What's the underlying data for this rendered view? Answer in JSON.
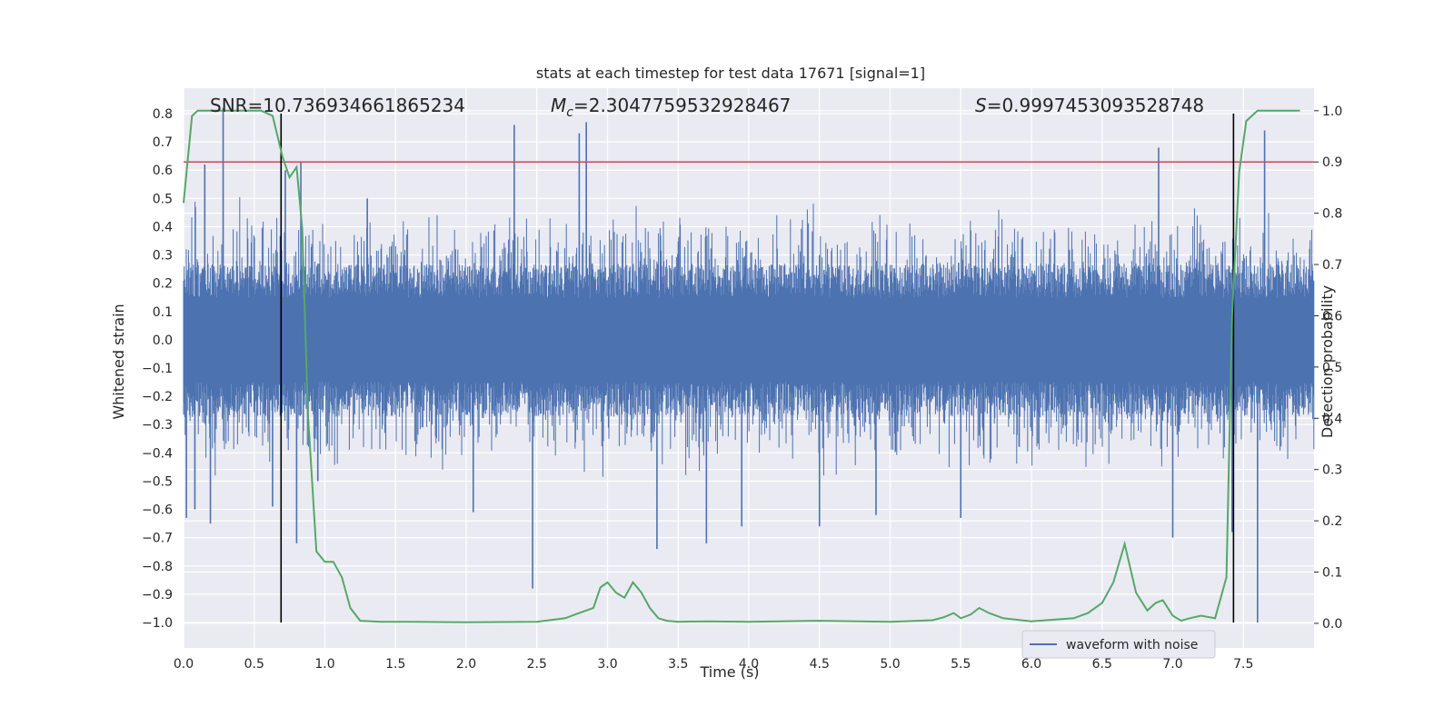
{
  "chart_data": {
    "type": "line",
    "title": "stats at each timestep for test data 17671 [signal=1]",
    "xlabel": "Time (s)",
    "ylabel": "Whitened strain",
    "y2label": "Detection probability",
    "xlim": [
      0,
      8.0
    ],
    "ylim": [
      -1.09,
      0.89
    ],
    "y2lim": [
      -0.048,
      1.044
    ],
    "xticks": [
      "0.0",
      "0.5",
      "1.0",
      "1.5",
      "2.0",
      "2.5",
      "3.0",
      "3.5",
      "4.0",
      "4.5",
      "5.0",
      "5.5",
      "6.0",
      "6.5",
      "7.0",
      "7.5"
    ],
    "yticks": [
      "0.8",
      "0.7",
      "0.6",
      "0.5",
      "0.4",
      "0.3",
      "0.2",
      "0.1",
      "0.0",
      "−0.1",
      "−0.2",
      "−0.3",
      "−0.4",
      "−0.5",
      "−0.6",
      "−0.7",
      "−0.8",
      "−0.9",
      "−1.0"
    ],
    "y2ticks": [
      "1.0",
      "0.9",
      "0.8",
      "0.7",
      "0.6",
      "0.5",
      "0.4",
      "0.3",
      "0.2",
      "0.1",
      "0.0"
    ],
    "annotations": {
      "snr": "SNR=10.736934661865234",
      "mc_sym": "M",
      "mc_sub": "c",
      "mc_val": "=2.3047759532928467",
      "s_sym": "S",
      "s_val": "=0.9997453093528748"
    },
    "legend": {
      "label": "waveform with noise",
      "position": "lower-right"
    },
    "threshold": 0.9,
    "vlines": [
      0.69,
      7.43
    ],
    "waveform": {
      "name": "waveform with noise",
      "color": "#4c72b0",
      "core_amplitude": 0.27,
      "spikes": [
        {
          "x": 0.02,
          "y": -0.63
        },
        {
          "x": 0.08,
          "y": -0.6
        },
        {
          "x": 0.15,
          "y": 0.62
        },
        {
          "x": 0.19,
          "y": -0.65
        },
        {
          "x": 0.28,
          "y": 0.82
        },
        {
          "x": 0.63,
          "y": -0.59
        },
        {
          "x": 0.72,
          "y": 0.6
        },
        {
          "x": 0.8,
          "y": -0.72
        },
        {
          "x": 0.83,
          "y": 0.63
        },
        {
          "x": 0.95,
          "y": -0.5
        },
        {
          "x": 1.3,
          "y": 0.5
        },
        {
          "x": 2.05,
          "y": -0.61
        },
        {
          "x": 2.34,
          "y": 0.76
        },
        {
          "x": 2.47,
          "y": -0.88
        },
        {
          "x": 2.8,
          "y": 0.73
        },
        {
          "x": 2.85,
          "y": 0.77
        },
        {
          "x": 3.35,
          "y": -0.74
        },
        {
          "x": 3.7,
          "y": -0.72
        },
        {
          "x": 3.95,
          "y": -0.66
        },
        {
          "x": 4.5,
          "y": -0.66
        },
        {
          "x": 4.9,
          "y": -0.62
        },
        {
          "x": 5.5,
          "y": -0.63
        },
        {
          "x": 6.9,
          "y": 0.68
        },
        {
          "x": 7.0,
          "y": -0.7
        },
        {
          "x": 7.42,
          "y": -0.68
        },
        {
          "x": 7.6,
          "y": -1.0
        },
        {
          "x": 7.65,
          "y": 0.74
        }
      ]
    },
    "probability": {
      "color": "#55a868",
      "x": [
        0.0,
        0.06,
        0.1,
        0.2,
        0.3,
        0.4,
        0.5,
        0.55,
        0.63,
        0.7,
        0.75,
        0.8,
        0.84,
        0.88,
        0.94,
        1.0,
        1.06,
        1.12,
        1.18,
        1.25,
        1.4,
        1.6,
        2.0,
        2.5,
        2.7,
        2.8,
        2.9,
        2.95,
        3.0,
        3.06,
        3.12,
        3.18,
        3.24,
        3.3,
        3.36,
        3.42,
        3.5,
        3.7,
        4.0,
        4.5,
        5.0,
        5.3,
        5.38,
        5.45,
        5.5,
        5.57,
        5.63,
        5.7,
        5.8,
        6.0,
        6.3,
        6.4,
        6.5,
        6.58,
        6.66,
        6.74,
        6.82,
        6.88,
        6.93,
        7.0,
        7.06,
        7.12,
        7.2,
        7.3,
        7.38,
        7.42,
        7.47,
        7.52,
        7.6,
        7.7,
        7.9
      ],
      "y": [
        0.82,
        0.99,
        1.0,
        1.0,
        1.0,
        1.0,
        1.0,
        1.0,
        0.99,
        0.91,
        0.87,
        0.89,
        0.77,
        0.41,
        0.14,
        0.12,
        0.12,
        0.09,
        0.03,
        0.005,
        0.003,
        0.003,
        0.002,
        0.003,
        0.01,
        0.02,
        0.03,
        0.07,
        0.08,
        0.06,
        0.05,
        0.08,
        0.06,
        0.03,
        0.01,
        0.005,
        0.003,
        0.004,
        0.003,
        0.005,
        0.003,
        0.006,
        0.012,
        0.02,
        0.01,
        0.017,
        0.03,
        0.02,
        0.01,
        0.004,
        0.01,
        0.02,
        0.04,
        0.08,
        0.155,
        0.06,
        0.025,
        0.04,
        0.045,
        0.015,
        0.005,
        0.01,
        0.015,
        0.01,
        0.09,
        0.6,
        0.88,
        0.98,
        1.0,
        1.0,
        1.0
      ]
    }
  }
}
